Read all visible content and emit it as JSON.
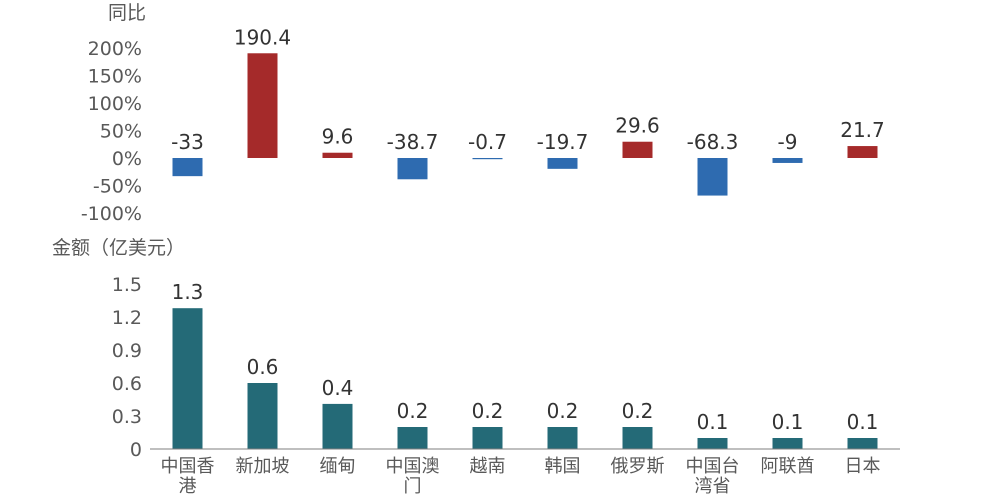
{
  "chart_data": [
    {
      "type": "bar",
      "ylabel": "同比",
      "ylim": [
        -100,
        200
      ],
      "yticks": [
        "200%",
        "150%",
        "100%",
        "50%",
        "0%",
        "-50%",
        "-100%"
      ],
      "ytick_values": [
        200,
        150,
        100,
        50,
        0,
        -50,
        -100
      ],
      "categories": [
        "中国香港",
        "新加坡",
        "缅甸",
        "中国澳门",
        "越南",
        "韩国",
        "俄罗斯",
        "中国台湾省",
        "阿联酋",
        "日本"
      ],
      "values": [
        -33,
        190.4,
        9.6,
        -38.7,
        -0.7,
        -19.7,
        29.6,
        -68.3,
        -9,
        21.7
      ],
      "value_labels": [
        "-33",
        "190.4",
        "9.6",
        "-38.7",
        "-0.7",
        "-19.7",
        "29.6",
        "-68.3",
        "-9",
        "21.7"
      ],
      "colors": {
        "positive": "#a52a2a",
        "negative": "#2e6bb0"
      },
      "grid": false
    },
    {
      "type": "bar",
      "ylabel": "金额（亿美元）",
      "ylim": [
        0,
        1.5
      ],
      "yticks": [
        "1.5",
        "1.2",
        "0.9",
        "0.6",
        "0.3",
        "0"
      ],
      "ytick_values": [
        1.5,
        1.2,
        0.9,
        0.6,
        0.3,
        0
      ],
      "categories": [
        "中国香港",
        "新加坡",
        "缅甸",
        "中国澳门",
        "越南",
        "韩国",
        "俄罗斯",
        "中国台湾省",
        "阿联酋",
        "日本"
      ],
      "category_lines": [
        [
          "中国香",
          "港"
        ],
        [
          "新加坡"
        ],
        [
          "缅甸"
        ],
        [
          "中国澳",
          "门"
        ],
        [
          "越南"
        ],
        [
          "韩国"
        ],
        [
          "俄罗斯"
        ],
        [
          "中国台",
          "湾省"
        ],
        [
          "阿联酋"
        ],
        [
          "日本"
        ]
      ],
      "values": [
        1.28,
        0.6,
        0.41,
        0.2,
        0.2,
        0.2,
        0.2,
        0.1,
        0.1,
        0.1
      ],
      "value_labels": [
        "1.3",
        "0.6",
        "0.4",
        "0.2",
        "0.2",
        "0.2",
        "0.2",
        "0.1",
        "0.1",
        "0.1"
      ],
      "colors": {
        "bar": "#246a77"
      },
      "grid": false
    }
  ]
}
